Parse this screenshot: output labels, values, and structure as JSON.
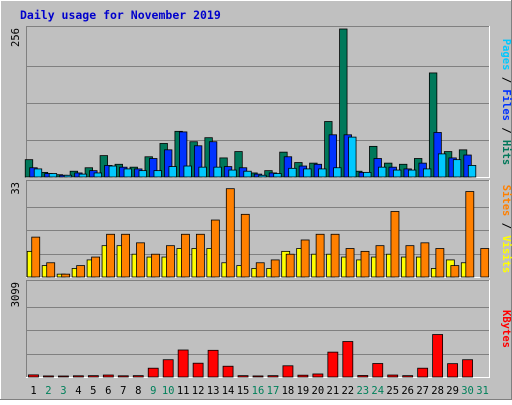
{
  "chart_data": {
    "type": "bar",
    "title": "Daily usage for November 2019",
    "x": [
      "1",
      "2",
      "3",
      "4",
      "5",
      "6",
      "7",
      "8",
      "9",
      "10",
      "11",
      "12",
      "13",
      "14",
      "15",
      "16",
      "17",
      "18",
      "19",
      "20",
      "21",
      "22",
      "23",
      "24",
      "25",
      "26",
      "27",
      "28",
      "29",
      "30",
      "31"
    ],
    "weekend_days": [
      "2",
      "3",
      "9",
      "10",
      "16",
      "17",
      "23",
      "24",
      "30",
      "31"
    ],
    "panels": [
      {
        "id": "hits",
        "ymax": 256,
        "ymax_label": "256",
        "side_label": [
          {
            "text": "Pages",
            "color": "#00c8ff"
          },
          {
            "text": " / ",
            "color": "#000000"
          },
          {
            "text": "Files",
            "color": "#0032ff"
          },
          {
            "text": " / ",
            "color": "#000000"
          },
          {
            "text": "Hits",
            "color": "#00785a"
          }
        ],
        "series": [
          {
            "name": "Hits",
            "color": "#00785a",
            "values": [
              30,
              8,
              4,
              10,
              16,
              37,
              22,
              17,
              35,
              58,
              79,
              61,
              68,
              33,
              44,
              7,
              11,
              43,
              25,
              24,
              96,
              256,
              10,
              53,
              24,
              22,
              32,
              180,
              44,
              47,
              0
            ]
          },
          {
            "name": "Files",
            "color": "#0032ff",
            "values": [
              16,
              6,
              3,
              7,
              11,
              20,
              17,
              14,
              32,
              47,
              78,
              54,
              61,
              18,
              16,
              5,
              7,
              35,
              19,
              22,
              73,
              73,
              8,
              32,
              17,
              14,
              24,
              77,
              33,
              38,
              0
            ]
          },
          {
            "name": "Pages",
            "color": "#00c8ff",
            "values": [
              14,
              6,
              3,
              5,
              7,
              19,
              14,
              11,
              11,
              18,
              19,
              17,
              17,
              12,
              10,
              3,
              6,
              15,
              14,
              14,
              16,
              69,
              8,
              17,
              12,
              12,
              14,
              40,
              30,
              20,
              0
            ]
          }
        ]
      },
      {
        "id": "visits",
        "ymax": 33,
        "ymax_label": "33",
        "side_label": [
          {
            "text": "Sites",
            "color": "#ff8000"
          },
          {
            "text": " / ",
            "color": "#000000"
          },
          {
            "text": "Visits",
            "color": "#ffff00"
          }
        ],
        "series": [
          {
            "name": "Visits",
            "color": "#ffff00",
            "values": [
              9,
              4,
              1,
              3,
              6,
              11,
              11,
              8,
              7,
              7,
              10,
              10,
              10,
              5,
              4,
              3,
              3,
              9,
              10,
              8,
              8,
              7,
              6,
              7,
              8,
              7,
              7,
              3,
              6,
              5,
              0
            ]
          },
          {
            "name": "Sites",
            "color": "#ff8000",
            "values": [
              14,
              5,
              1,
              4,
              7,
              15,
              15,
              12,
              8,
              11,
              15,
              15,
              20,
              31,
              22,
              5,
              6,
              8,
              13,
              15,
              15,
              10,
              9,
              11,
              23,
              11,
              12,
              10,
              4,
              30,
              10
            ]
          }
        ]
      },
      {
        "id": "kbytes",
        "ymax": 3099,
        "ymax_label": "3099",
        "side_label": [
          {
            "text": "KBytes",
            "color": "#ff0000"
          }
        ],
        "series": [
          {
            "name": "KBytes",
            "color": "#ff0000",
            "values": [
              70,
              35,
              30,
              40,
              45,
              65,
              40,
              45,
              290,
              570,
              890,
              455,
              880,
              355,
              45,
              35,
              45,
              370,
              60,
              100,
              820,
              1170,
              50,
              445,
              65,
              45,
              290,
              1400,
              440,
              570,
              0
            ]
          }
        ]
      }
    ]
  }
}
